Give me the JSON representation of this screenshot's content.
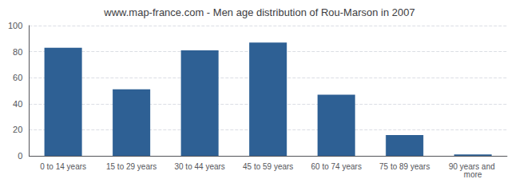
{
  "chart_data": {
    "type": "bar",
    "title": "www.map-france.com - Men age distribution of Rou-Marson in 2007",
    "categories": [
      "0 to 14 years",
      "15 to 29 years",
      "30 to 44 years",
      "45 to 59 years",
      "60 to 74 years",
      "75 to 89 years",
      "90 years and more"
    ],
    "values": [
      83,
      51,
      81,
      87,
      47,
      16,
      1
    ],
    "color": "#2e6094",
    "ylim": [
      0,
      100
    ],
    "yticks": [
      0,
      20,
      40,
      60,
      80,
      100
    ],
    "grid": true
  }
}
